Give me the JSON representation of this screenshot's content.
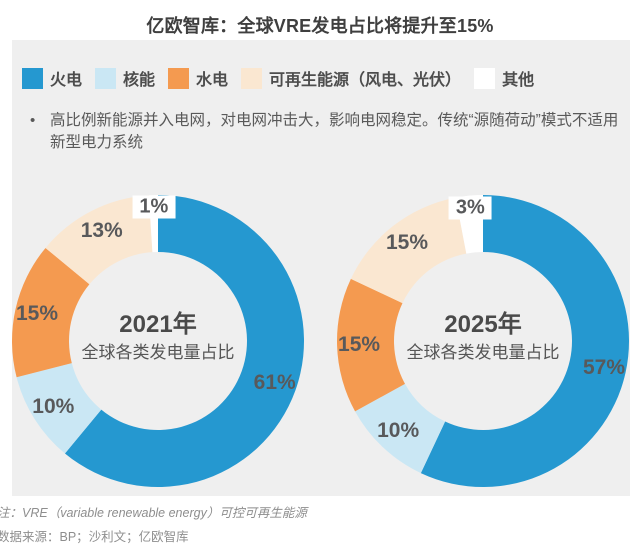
{
  "title": "亿欧智库：全球VRE发电占比将提升至15%",
  "panel": {
    "background": "#efefef",
    "bullet_marker": "•",
    "bullet_text": "高比例新能源并入电网，对电网冲击大，影响电网稳定。传统“源随荷动”模式不适用新型电力系统"
  },
  "legend": {
    "items": [
      {
        "label": "火电",
        "color": "#2598d0"
      },
      {
        "label": "核能",
        "color": "#cae7f4"
      },
      {
        "label": "水电",
        "color": "#f49a50"
      },
      {
        "label": "可再生能源（风电、光伏）",
        "color": "#fae7d1"
      },
      {
        "label": "其他",
        "color": "#ffffff"
      }
    ]
  },
  "chart_data": [
    {
      "type": "pie",
      "donut": true,
      "center_title": "2021年",
      "center_subtitle": "全球各类发电量占比",
      "categories": [
        "火电",
        "核能",
        "水电",
        "可再生能源（风电、光伏）",
        "其他"
      ],
      "values": [
        61,
        10,
        15,
        13,
        1
      ],
      "unit": "%",
      "colors": [
        "#2598d0",
        "#cae7f4",
        "#f49a50",
        "#fae7d1",
        "#ffffff"
      ]
    },
    {
      "type": "pie",
      "donut": true,
      "center_title": "2025年",
      "center_subtitle": "全球各类发电量占比",
      "categories": [
        "火电",
        "核能",
        "水电",
        "可再生能源（风电、光伏）",
        "其他"
      ],
      "values": [
        57,
        10,
        15,
        15,
        3
      ],
      "unit": "%",
      "colors": [
        "#2598d0",
        "#cae7f4",
        "#f49a50",
        "#fae7d1",
        "#ffffff"
      ]
    }
  ],
  "footnotes": {
    "note": "注：VRE（variable renewable energy）可控可再生能源",
    "source": "数据来源：BP；沙利文；亿欧智库"
  }
}
